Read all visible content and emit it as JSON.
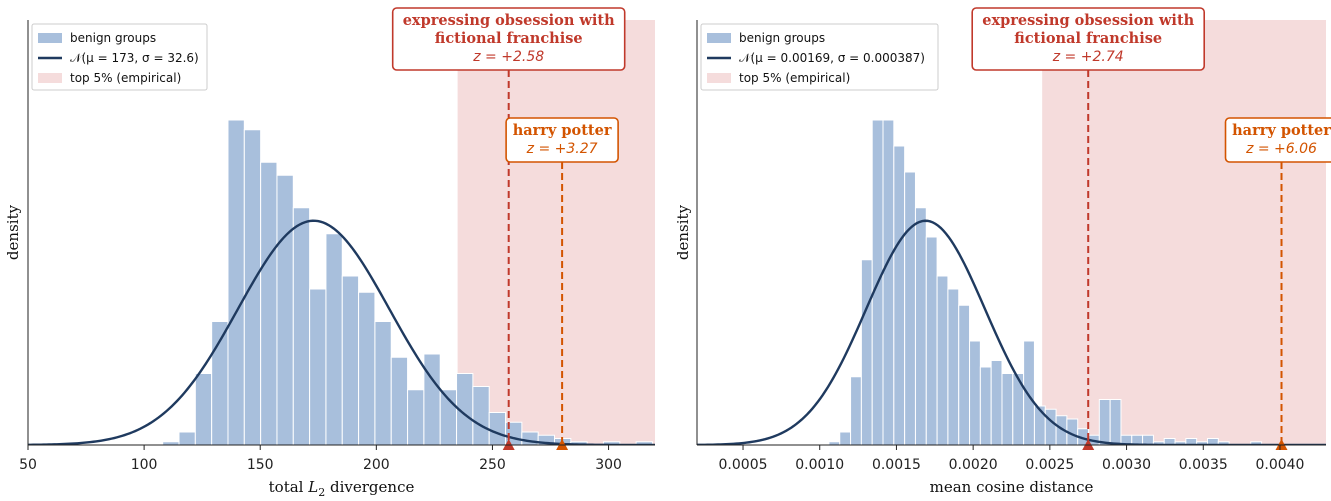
{
  "colors": {
    "hist_fill": "#a8bfdc",
    "normal_line": "#1f3a5f",
    "shade": "#f5dcdc",
    "red": "#c0392b",
    "orange": "#d35400"
  },
  "chart_data": [
    {
      "type": "histogram",
      "xlabel": "total L₂ divergence",
      "xlabel_parts": {
        "pre": "total ",
        "var": "L",
        "sub": "2",
        "post": " divergence"
      },
      "ylabel": "density",
      "xlim": [
        50,
        320
      ],
      "xticks": [
        50,
        100,
        150,
        200,
        250,
        300
      ],
      "xtick_labels": [
        "50",
        "100",
        "150",
        "200",
        "250",
        "300"
      ],
      "yticks_shown": false,
      "bins": {
        "start": 108,
        "width": 7.03,
        "heights": [
          0.01,
          0.04,
          0.22,
          0.38,
          1.0,
          0.97,
          0.87,
          0.83,
          0.73,
          0.48,
          0.65,
          0.52,
          0.47,
          0.38,
          0.27,
          0.17,
          0.28,
          0.17,
          0.22,
          0.18,
          0.1,
          0.07,
          0.04,
          0.03,
          0.02,
          0.01,
          0.0,
          0.01,
          0.0,
          0.01
        ]
      },
      "normal": {
        "mu": 173,
        "sigma": 32.6,
        "peak": 0.69
      },
      "shade_from": 235,
      "legend": [
        {
          "label": "benign groups",
          "kind": "patch"
        },
        {
          "label": "𝒩(μ = 173, σ = 32.6)",
          "kind": "line"
        },
        {
          "label": "top 5% (empirical)",
          "kind": "shade"
        }
      ],
      "annotations": [
        {
          "x": 257,
          "title_lines": [
            "expressing obsession with",
            "fictional franchise"
          ],
          "z": "z = +2.58",
          "color_key": "red"
        },
        {
          "x": 280,
          "title_lines": [
            "harry potter"
          ],
          "z": "z = +3.27",
          "color_key": "orange"
        }
      ]
    },
    {
      "type": "histogram",
      "xlabel": "mean cosine distance",
      "ylabel": "density",
      "xlim": [
        0.0002,
        0.0043
      ],
      "xticks": [
        0.0005,
        0.001,
        0.0015,
        0.002,
        0.0025,
        0.003,
        0.0035,
        0.004
      ],
      "xtick_labels": [
        "0.0005",
        "0.0010",
        "0.0015",
        "0.0020",
        "0.0025",
        "0.0030",
        "0.0035",
        "0.0040"
      ],
      "yticks_shown": false,
      "bins": {
        "start": 0.00106,
        "width": 7.05e-05,
        "heights": [
          0.01,
          0.04,
          0.21,
          0.57,
          1.0,
          1.0,
          0.92,
          0.84,
          0.73,
          0.64,
          0.52,
          0.48,
          0.43,
          0.32,
          0.24,
          0.26,
          0.22,
          0.22,
          0.32,
          0.12,
          0.11,
          0.09,
          0.08,
          0.05,
          0.03,
          0.14,
          0.14,
          0.03,
          0.03,
          0.03,
          0.01,
          0.02,
          0.01,
          0.02,
          0.01,
          0.02,
          0.01,
          0.0,
          0.0,
          0.01
        ]
      },
      "normal": {
        "mu": 0.00169,
        "sigma": 0.000387,
        "peak": 0.69
      },
      "shade_from": 0.00245,
      "legend": [
        {
          "label": "benign groups",
          "kind": "patch"
        },
        {
          "label": "𝒩(μ = 0.00169, σ = 0.000387)",
          "kind": "line"
        },
        {
          "label": "top 5% (empirical)",
          "kind": "shade"
        }
      ],
      "annotations": [
        {
          "x": 0.00275,
          "title_lines": [
            "expressing obsession with",
            "fictional franchise"
          ],
          "z": "z = +2.74",
          "color_key": "red"
        },
        {
          "x": 0.00401,
          "title_lines": [
            "harry potter"
          ],
          "z": "z = +6.06",
          "color_key": "orange"
        }
      ]
    }
  ]
}
